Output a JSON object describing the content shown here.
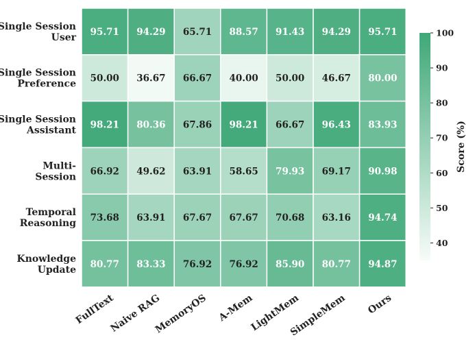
{
  "chart_data": {
    "type": "heatmap",
    "rows": [
      [
        "Single Session",
        "User"
      ],
      [
        "Single Session",
        "Preference"
      ],
      [
        "Single Session",
        "Assistant"
      ],
      [
        "Multi-",
        "Session"
      ],
      [
        "Temporal",
        "Reasoning"
      ],
      [
        "Knowledge",
        "Update"
      ]
    ],
    "columns": [
      "FullText",
      "Naive RAG",
      "MemoryOS",
      "A-Mem",
      "LightMem",
      "SimpleMem",
      "Ours"
    ],
    "values": [
      [
        95.71,
        94.29,
        65.71,
        88.57,
        91.43,
        94.29,
        95.71
      ],
      [
        50.0,
        36.67,
        66.67,
        40.0,
        50.0,
        46.67,
        80.0
      ],
      [
        98.21,
        80.36,
        67.86,
        98.21,
        66.67,
        96.43,
        83.93
      ],
      [
        66.92,
        49.62,
        63.91,
        58.65,
        79.93,
        69.17,
        90.98
      ],
      [
        73.68,
        63.91,
        67.67,
        67.67,
        70.68,
        63.16,
        94.74
      ],
      [
        80.77,
        83.33,
        76.92,
        76.92,
        85.9,
        80.77,
        94.87
      ]
    ],
    "value_labels": [
      [
        "95.71",
        "94.29",
        "65.71",
        "88.57",
        "91.43",
        "94.29",
        "95.71"
      ],
      [
        "50.00",
        "36.67",
        "66.67",
        "40.00",
        "50.00",
        "46.67",
        "80.00"
      ],
      [
        "98.21",
        "80.36",
        "67.86",
        "98.21",
        "66.67",
        "96.43",
        "83.93"
      ],
      [
        "66.92",
        "49.62",
        "63.91",
        "58.65",
        "79.93",
        "69.17",
        "90.98"
      ],
      [
        "73.68",
        "63.91",
        "67.67",
        "67.67",
        "70.68",
        "63.16",
        "94.74"
      ],
      [
        "80.77",
        "83.33",
        "76.92",
        "76.92",
        "85.90",
        "80.77",
        "94.87"
      ]
    ],
    "colorbar": {
      "label": "Score (%)",
      "range": [
        35,
        100
      ],
      "ticks": [
        40,
        50,
        60,
        70,
        80,
        90,
        100
      ],
      "tick_labels": [
        "40",
        "50",
        "60",
        "70",
        "80",
        "90",
        "100"
      ],
      "low_color": "#f7fcf9",
      "high_color": "#3fa878",
      "position": "right"
    },
    "text_color_dark": "#222222",
    "text_color_light": "#ffffff",
    "light_text_threshold": 79
  }
}
